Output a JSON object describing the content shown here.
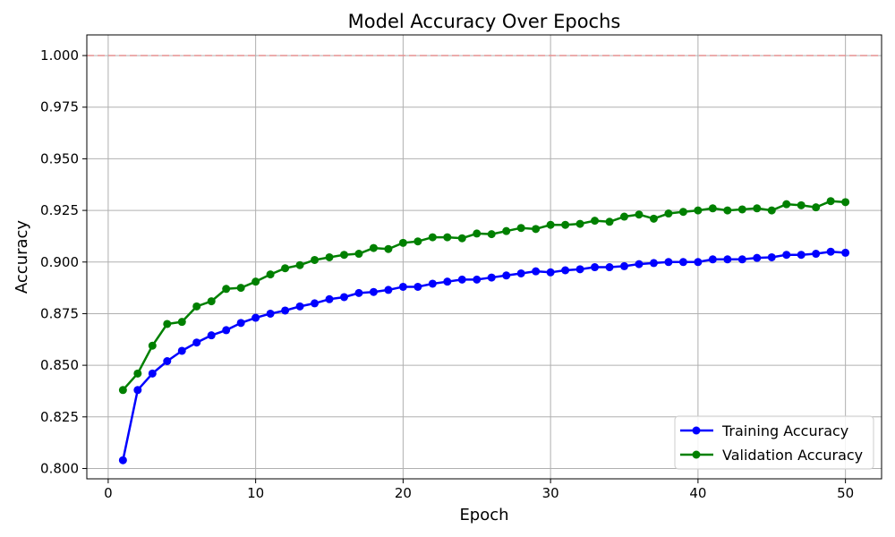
{
  "chart_data": {
    "type": "line",
    "title": "Model Accuracy Over Epochs",
    "xlabel": "Epoch",
    "ylabel": "Accuracy",
    "xlim": [
      -1.45,
      52.45
    ],
    "ylim": [
      0.795,
      1.01
    ],
    "xticks": [
      0,
      10,
      20,
      30,
      40,
      50
    ],
    "yticks": [
      0.8,
      0.825,
      0.85,
      0.875,
      0.9,
      0.925,
      0.95,
      0.975,
      1.0
    ],
    "ytick_labels": [
      "0.800",
      "0.825",
      "0.850",
      "0.875",
      "0.900",
      "0.925",
      "0.950",
      "0.975",
      "1.000"
    ],
    "grid": true,
    "legend_position": "lower-right",
    "reference_line": {
      "y": 1.0,
      "color": "#e88b8b",
      "style": "dashed"
    },
    "x": [
      1,
      2,
      3,
      4,
      5,
      6,
      7,
      8,
      9,
      10,
      11,
      12,
      13,
      14,
      15,
      16,
      17,
      18,
      19,
      20,
      21,
      22,
      23,
      24,
      25,
      26,
      27,
      28,
      29,
      30,
      31,
      32,
      33,
      34,
      35,
      36,
      37,
      38,
      39,
      40,
      41,
      42,
      43,
      44,
      45,
      46,
      47,
      48,
      49,
      50
    ],
    "series": [
      {
        "name": "Training Accuracy",
        "color": "#0000ff",
        "values": [
          0.804,
          0.838,
          0.846,
          0.852,
          0.857,
          0.861,
          0.8645,
          0.867,
          0.8705,
          0.873,
          0.875,
          0.8765,
          0.8785,
          0.88,
          0.882,
          0.883,
          0.885,
          0.8855,
          0.8865,
          0.888,
          0.888,
          0.8895,
          0.8905,
          0.8915,
          0.8915,
          0.8925,
          0.8935,
          0.8945,
          0.8955,
          0.895,
          0.896,
          0.8965,
          0.8975,
          0.8975,
          0.898,
          0.899,
          0.8995,
          0.9,
          0.9,
          0.9,
          0.9013,
          0.9013,
          0.9013,
          0.902,
          0.9023,
          0.9035,
          0.9035,
          0.904,
          0.905,
          0.9045
        ]
      },
      {
        "name": "Validation Accuracy",
        "color": "#008000",
        "values": [
          0.838,
          0.846,
          0.8595,
          0.87,
          0.871,
          0.8785,
          0.881,
          0.887,
          0.8875,
          0.8905,
          0.894,
          0.897,
          0.8985,
          0.901,
          0.9023,
          0.9035,
          0.904,
          0.9068,
          0.9063,
          0.9093,
          0.91,
          0.912,
          0.912,
          0.9115,
          0.9138,
          0.9135,
          0.915,
          0.9165,
          0.916,
          0.918,
          0.918,
          0.9185,
          0.92,
          0.9195,
          0.922,
          0.923,
          0.921,
          0.9235,
          0.9243,
          0.925,
          0.926,
          0.925,
          0.9255,
          0.926,
          0.925,
          0.928,
          0.9275,
          0.9265,
          0.9295,
          0.929
        ]
      }
    ]
  }
}
